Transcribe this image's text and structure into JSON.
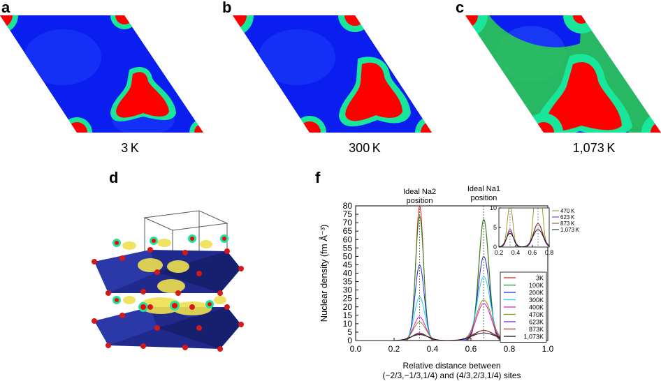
{
  "panels": {
    "a": {
      "label": "a",
      "caption": "3 K"
    },
    "b": {
      "label": "b",
      "caption": "300 K"
    },
    "c": {
      "label": "c",
      "caption": "1,073 K"
    },
    "d": {
      "label": "d"
    },
    "f": {
      "label": "f"
    }
  },
  "colors": {
    "low": "#0a1ef0",
    "mid": "#18e69a",
    "green": "#2ed24a",
    "high": "#ff0000",
    "polyhedra": "#1f2a8c",
    "atoms": "#d61818",
    "isosurface": "#f0e050"
  },
  "chart_data": {
    "type": "line",
    "xlabel_line1": "Relative distance between",
    "xlabel_line2": "(−2/3,−1/3,1/4) and (4/3,2/3,1/4) sites",
    "ylabel": "Nuclear density (fm Å⁻³)",
    "xlim": [
      0.0,
      1.0
    ],
    "ylim": [
      0,
      80
    ],
    "xticks": [
      "0.0",
      "0.2",
      "0.4",
      "0.6",
      "0.8",
      "1.0"
    ],
    "yticks": [
      "0",
      "5",
      "10",
      "15",
      "20",
      "25",
      "30",
      "35",
      "40",
      "45",
      "50",
      "55",
      "60",
      "65",
      "70",
      "75",
      "80"
    ],
    "annotations": [
      {
        "line1": "Ideal Na2",
        "line2": "position",
        "x": 0.333
      },
      {
        "line1": "Ideal Na1",
        "line2": "position",
        "x": 0.667
      }
    ],
    "legend_position": "lower-right",
    "series": [
      {
        "name": "3K",
        "color": "#e41a1a",
        "na2": 80,
        "na2w": 0.02,
        "na1": 72,
        "na1w": 0.026
      },
      {
        "name": "100K",
        "color": "#1e8f1e",
        "na2": 74,
        "na2w": 0.021,
        "na1": 72,
        "na1w": 0.027
      },
      {
        "name": "200K",
        "color": "#1f2ad6",
        "na2": 45,
        "na2w": 0.024,
        "na1": 50,
        "na1w": 0.03
      },
      {
        "name": "300K",
        "color": "#22d4e6",
        "na2": 26,
        "na2w": 0.027,
        "na1": 38,
        "na1w": 0.034
      },
      {
        "name": "400K",
        "color": "#e01ad0",
        "na2": 14,
        "na2w": 0.03,
        "na1": 22,
        "na1w": 0.038
      },
      {
        "name": "470K",
        "color": "#8f8f1e",
        "na2": 11,
        "na2w": 0.032,
        "na1": 24,
        "na1w": 0.04
      },
      {
        "name": "623K",
        "color": "#6a1ec0",
        "na2": 4.5,
        "na2w": 0.036,
        "na1": 6,
        "na1w": 0.05
      },
      {
        "name": "873K",
        "color": "#8a3a12",
        "na2": 4,
        "na2w": 0.04,
        "na1": 6,
        "na1w": 0.055
      },
      {
        "name": "1,073K",
        "color": "#111111",
        "na2": 3.5,
        "na2w": 0.045,
        "na1": 4.5,
        "na1w": 0.06
      }
    ],
    "inset": {
      "xlim": [
        0.2,
        0.8
      ],
      "ylim": [
        0,
        10
      ],
      "xticks": [
        "0.2",
        "0.4",
        "0.6",
        "0.8"
      ],
      "yticks": [
        "0",
        "5",
        "10"
      ],
      "legend": [
        "470 K",
        "623 K",
        "873 K",
        "1,073 K"
      ],
      "legend_colors": [
        "#8f8f1e",
        "#6a1ec0",
        "#8a3a12",
        "#111111"
      ]
    }
  }
}
